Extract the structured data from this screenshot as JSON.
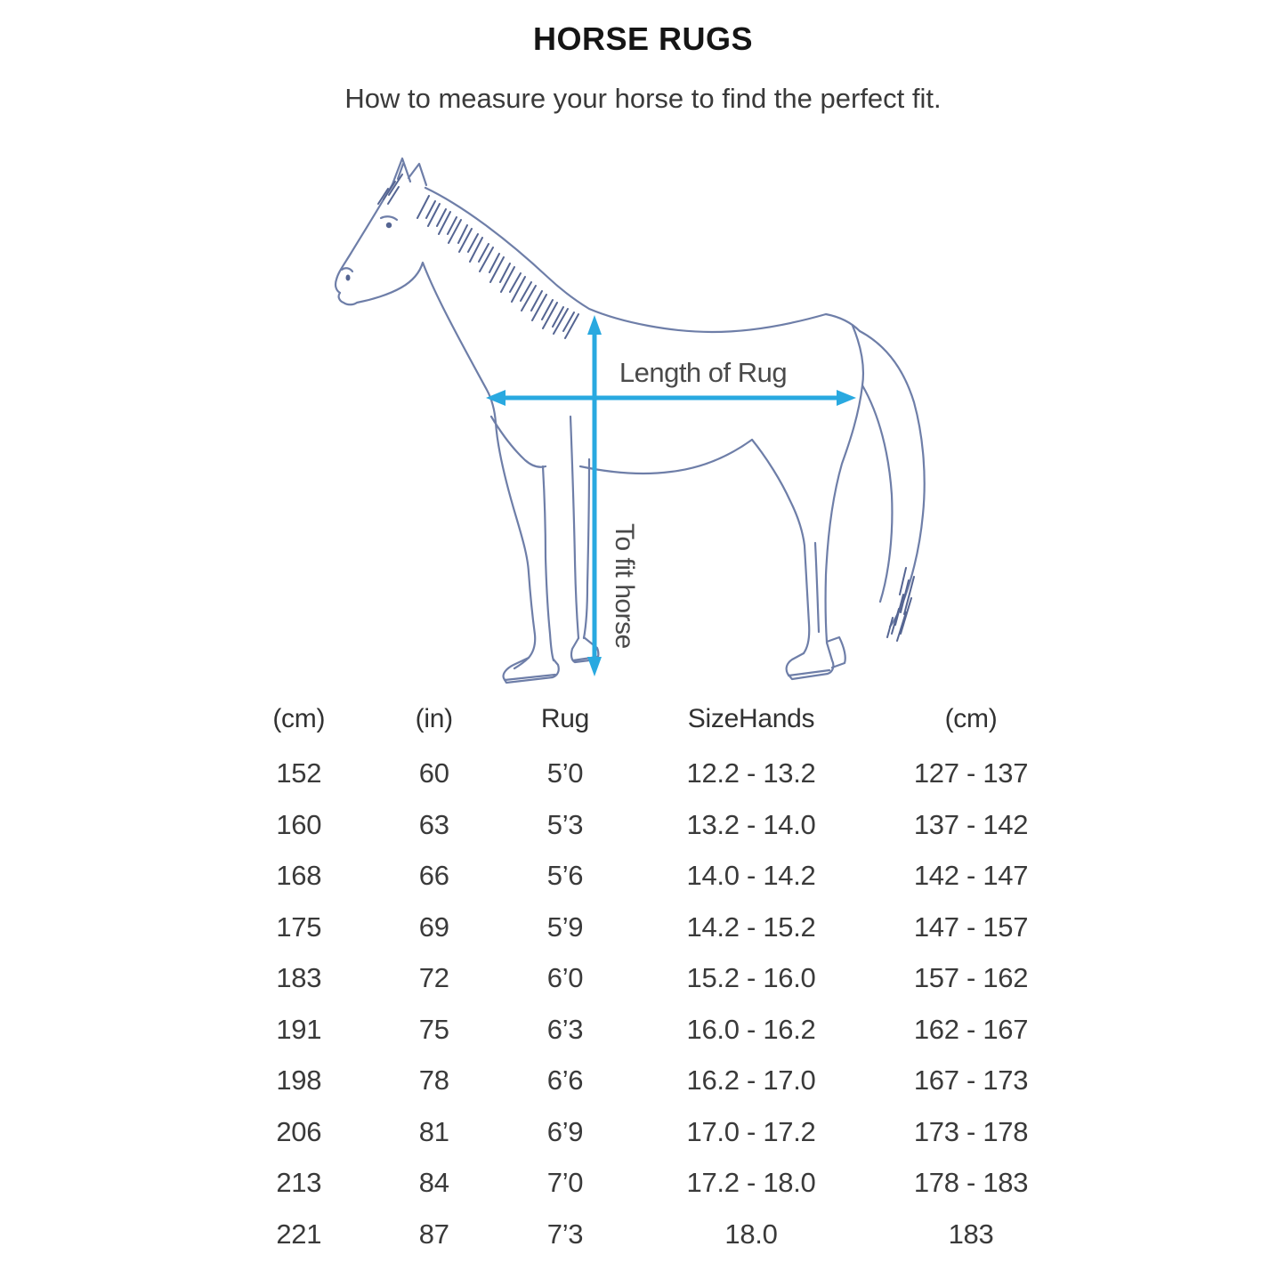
{
  "page": {
    "title": "HORSE RUGS",
    "subtitle": "How to measure your horse to find the perfect fit."
  },
  "diagram": {
    "length_arrow_label": "Length of Rug",
    "height_arrow_label": "To fit horse",
    "arrow_color": "#29a9e0",
    "horse_outline_color": "#6e7ea8",
    "label_color": "#4a4a4a"
  },
  "size_table": {
    "headers": [
      "(cm)",
      "(in)",
      "Rug",
      "SizeHands",
      "(cm)"
    ],
    "rows": [
      [
        "152",
        "60",
        "5’0",
        "12.2 - 13.2",
        "127 - 137"
      ],
      [
        "160",
        "63",
        "5’3",
        "13.2 - 14.0",
        "137 - 142"
      ],
      [
        "168",
        "66",
        "5’6",
        "14.0 - 14.2",
        "142 - 147"
      ],
      [
        "175",
        "69",
        "5’9",
        "14.2 - 15.2",
        "147 - 157"
      ],
      [
        "183",
        "72",
        "6’0",
        "15.2 - 16.0",
        "157 - 162"
      ],
      [
        "191",
        "75",
        "6’3",
        "16.0 - 16.2",
        "162 - 167"
      ],
      [
        "198",
        "78",
        "6’6",
        "16.2 - 17.0",
        "167 - 173"
      ],
      [
        "206",
        "81",
        "6’9",
        "17.0 - 17.2",
        "173 - 178"
      ],
      [
        "213",
        "84",
        "7’0",
        "17.2 - 18.0",
        "178 - 183"
      ],
      [
        "221",
        "87",
        "7’3",
        "18.0",
        "183"
      ]
    ]
  }
}
